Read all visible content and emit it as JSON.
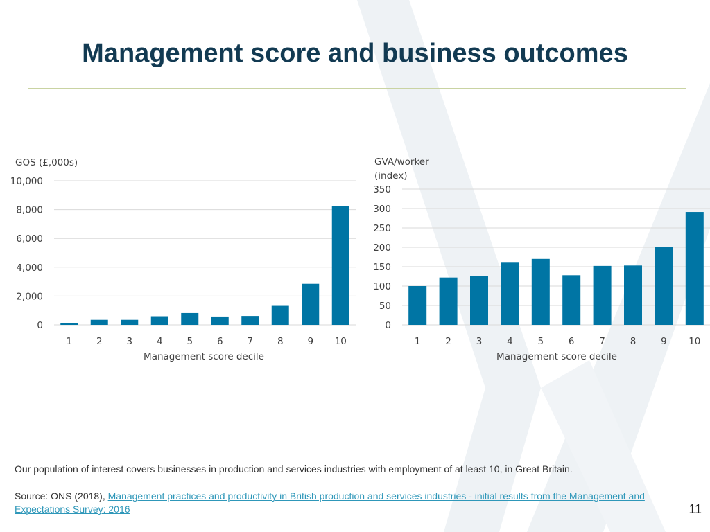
{
  "slide": {
    "title": "Management score and business outcomes",
    "footnote": "Our population of interest covers businesses in production and services industries with employment of at least 10, in Great Britain.",
    "source_prefix": "Source: ONS (2018), ",
    "source_link": "Management practices and productivity in British production and services industries - initial results from the Management and Expectations Survey: 2016",
    "page_number": "11",
    "colors": {
      "title": "#123a52",
      "bar": "#0075a4",
      "gridline": "#d9d9d9",
      "link": "#2e97b9",
      "rule": "#c9d3a2",
      "watermark": "#e8edf1"
    }
  },
  "chart_data": [
    {
      "type": "bar",
      "ylabel": "GOS (£,000s)",
      "xlabel": "Management score decile",
      "categories": [
        "1",
        "2",
        "3",
        "4",
        "5",
        "6",
        "7",
        "8",
        "9",
        "10"
      ],
      "values": [
        100,
        350,
        350,
        600,
        820,
        580,
        620,
        1320,
        2850,
        8250
      ],
      "ylim": [
        0,
        10000
      ],
      "yticks": [
        0,
        2000,
        4000,
        6000,
        8000,
        10000
      ],
      "ytick_labels": [
        "0",
        "2,000",
        "4,000",
        "6,000",
        "8,000",
        "10,000"
      ],
      "grid": true
    },
    {
      "type": "bar",
      "ylabel_lines": [
        "GVA/worker",
        "(index)"
      ],
      "xlabel": "Management score decile",
      "categories": [
        "1",
        "2",
        "3",
        "4",
        "5",
        "6",
        "7",
        "8",
        "9",
        "10"
      ],
      "values": [
        100,
        122,
        126,
        162,
        170,
        128,
        152,
        153,
        201,
        291
      ],
      "ylim": [
        0,
        350
      ],
      "yticks": [
        0,
        50,
        100,
        150,
        200,
        250,
        300,
        350
      ],
      "ytick_labels": [
        "0",
        "50",
        "100",
        "150",
        "200",
        "250",
        "300",
        "350"
      ],
      "grid": true
    }
  ]
}
